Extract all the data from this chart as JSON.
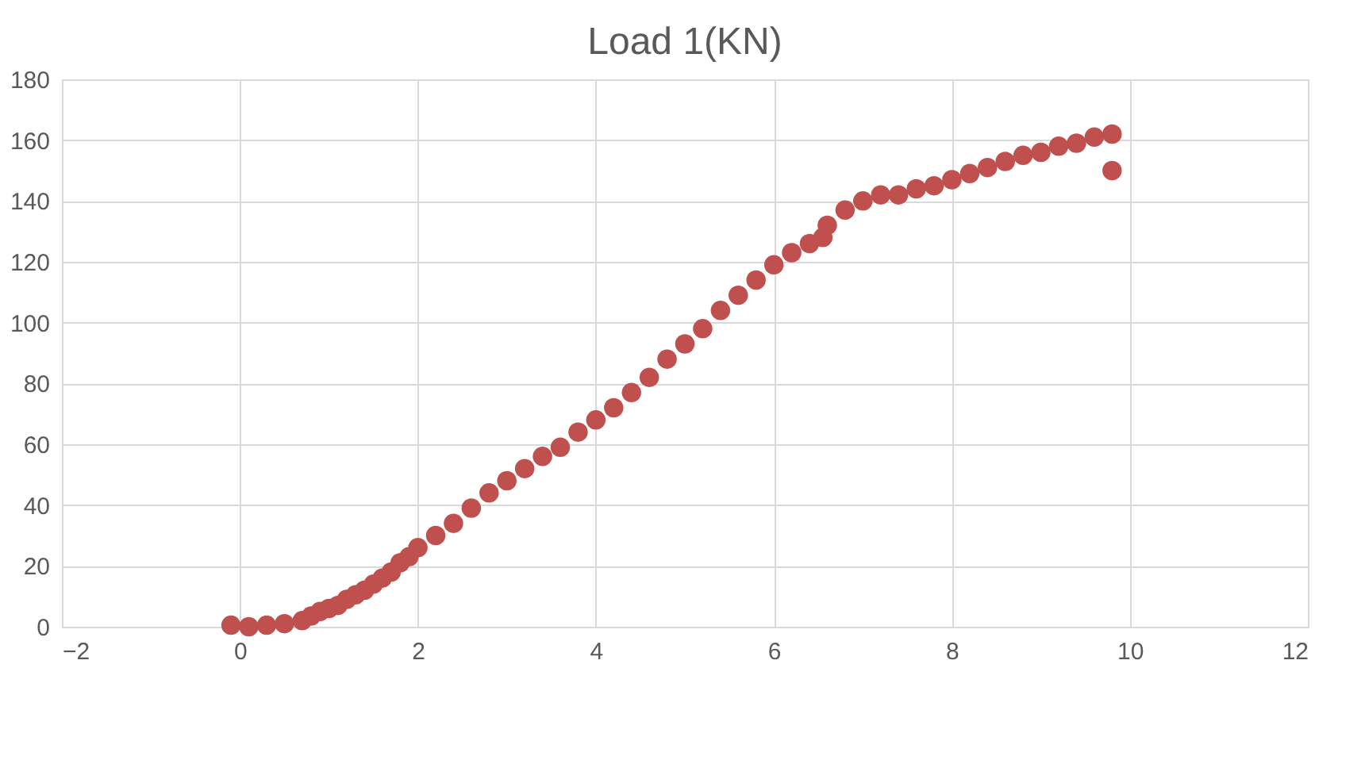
{
  "chart_data": {
    "type": "scatter",
    "title": "Load 1(KN)",
    "color": "#c0504d",
    "marker": "circle",
    "grid": true,
    "xlim": [
      -2,
      12
    ],
    "xticks": [
      -2,
      0,
      2,
      4,
      6,
      8,
      10,
      12
    ],
    "ylim": [
      0,
      180
    ],
    "yticks": [
      0,
      20,
      40,
      60,
      80,
      100,
      120,
      140,
      160,
      180
    ],
    "x": [
      -0.1,
      0.1,
      0.3,
      0.5,
      0.7,
      0.8,
      0.9,
      1.0,
      1.1,
      1.2,
      1.3,
      1.4,
      1.5,
      1.6,
      1.7,
      1.8,
      1.9,
      2.0,
      2.2,
      2.4,
      2.6,
      2.8,
      3.0,
      3.2,
      3.4,
      3.6,
      3.8,
      4.0,
      4.2,
      4.4,
      4.6,
      4.8,
      5.0,
      5.2,
      5.4,
      5.6,
      5.8,
      6.0,
      6.2,
      6.4,
      6.55,
      6.6,
      6.8,
      7.0,
      7.2,
      7.4,
      7.6,
      7.8,
      8.0,
      8.2,
      8.4,
      8.6,
      8.8,
      9.0,
      9.2,
      9.4,
      9.6,
      9.8,
      9.8
    ],
    "values": [
      0.5,
      0,
      0.5,
      1,
      2,
      3.5,
      5,
      6,
      7,
      9,
      10.5,
      12,
      14,
      16,
      18,
      21,
      23,
      26,
      30,
      34,
      39,
      44,
      48,
      52,
      56,
      59,
      64,
      68,
      72,
      77,
      82,
      88,
      93,
      98,
      104,
      109,
      114,
      119,
      123,
      126,
      128,
      132,
      137,
      140,
      142,
      142,
      144,
      145,
      147,
      149,
      151,
      153,
      155,
      156,
      158,
      159,
      161,
      162,
      150
    ]
  }
}
